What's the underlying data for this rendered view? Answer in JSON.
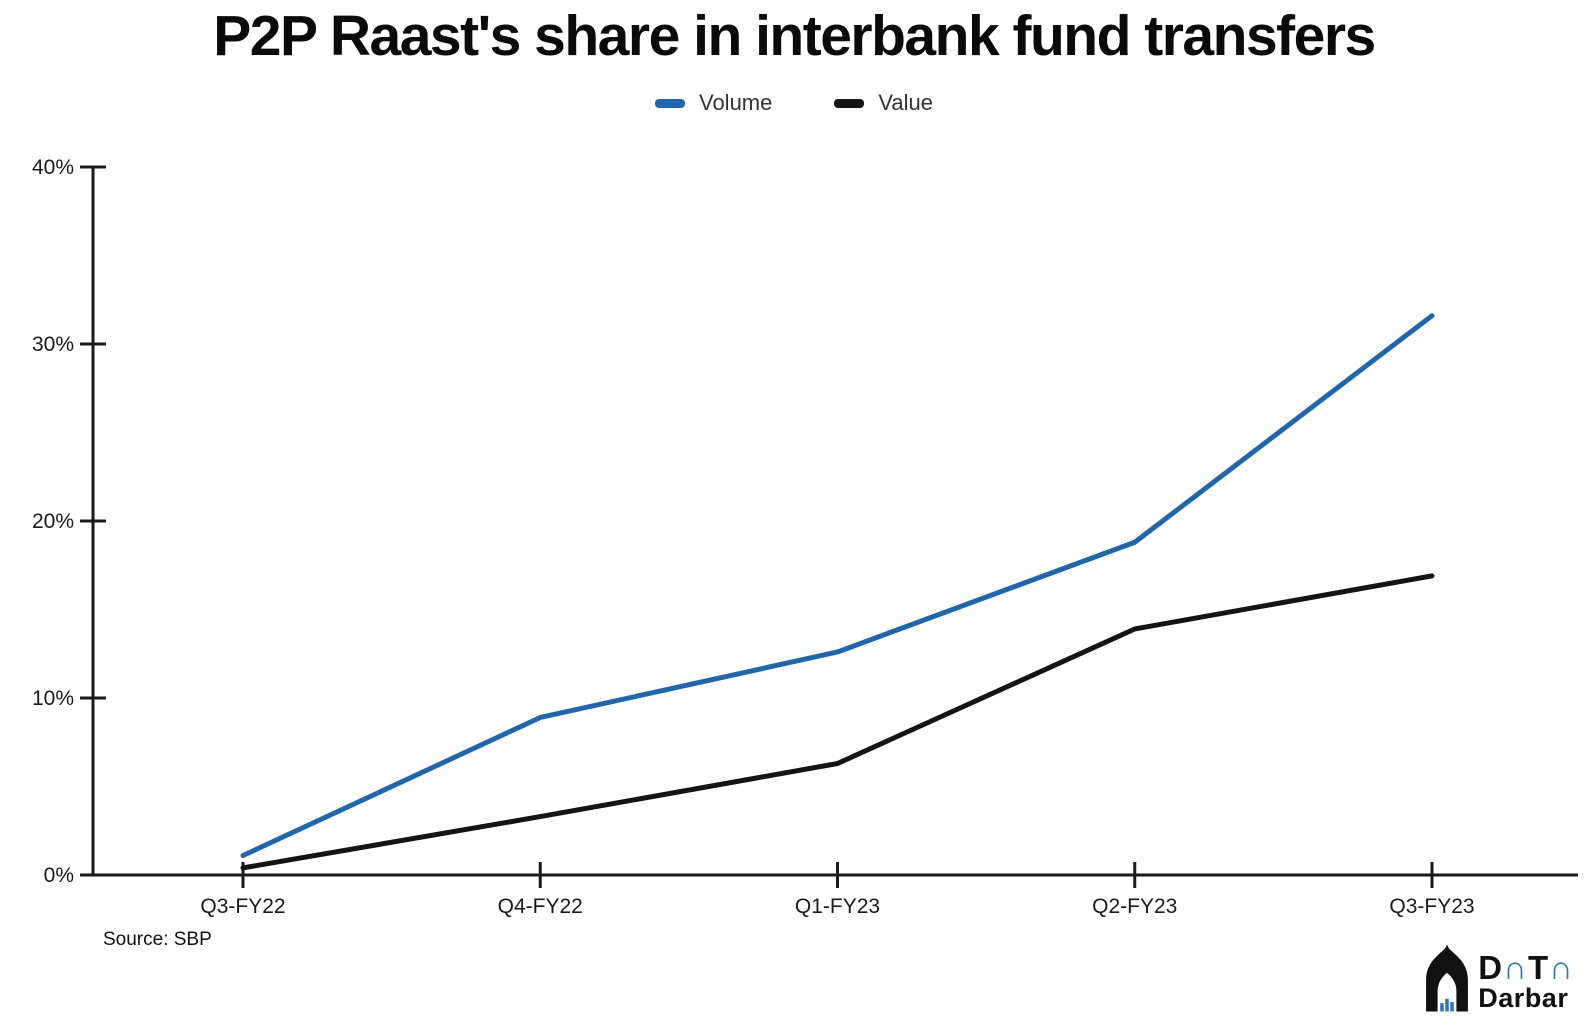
{
  "chart": {
    "title": "P2P Raast's share in interbank fund transfers",
    "source": "Source: SBP"
  },
  "legend": [
    {
      "label": "Volume",
      "color": "#2166ab"
    },
    {
      "label": "Value",
      "color": "#141414"
    }
  ],
  "chart_data": {
    "type": "line",
    "categories": [
      "Q3-FY22",
      "Q4-FY22",
      "Q1-FY23",
      "Q2-FY23",
      "Q3-FY23"
    ],
    "series": [
      {
        "name": "Volume",
        "color": "#2166ab",
        "values": [
          1.1,
          8.9,
          12.6,
          18.8,
          31.6
        ]
      },
      {
        "name": "Value",
        "color": "#141414",
        "values": [
          0.4,
          3.3,
          6.3,
          13.9,
          16.9
        ]
      }
    ],
    "title": "P2P Raast's share in interbank fund transfers",
    "xlabel": "",
    "ylabel": "",
    "ylim": [
      0,
      40
    ],
    "yticks": [
      0,
      10,
      20,
      30,
      40
    ],
    "ytick_suffix": "%",
    "grid": false,
    "legend_position": "top",
    "axis_color": "#1a1a1a",
    "tick_label_color": "#1a1a1a"
  },
  "logo": {
    "d": "D",
    "a1": "∩",
    "t": "T",
    "a2": "∩",
    "name": "Darbar",
    "blue": "#2e75b6"
  }
}
